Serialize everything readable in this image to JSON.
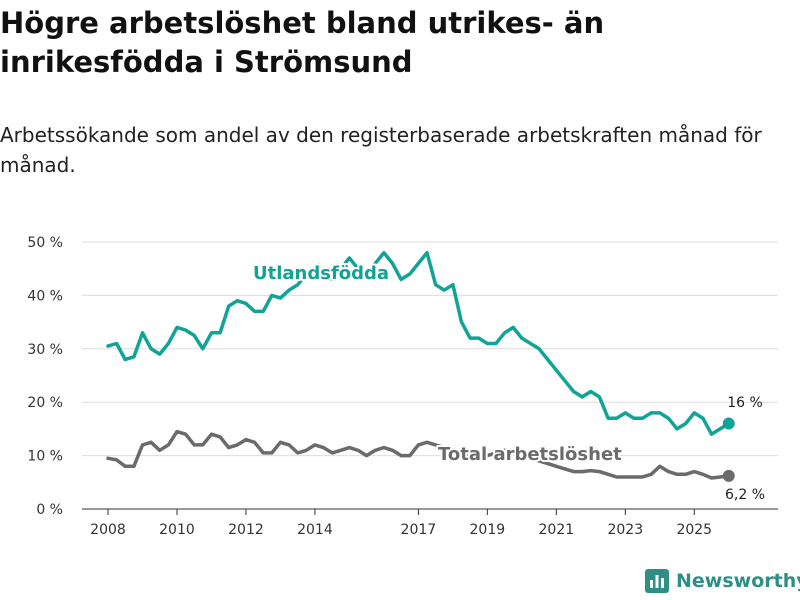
{
  "title": "Högre arbetslöshet bland utrikes- än inrikesfödda i Strömsund",
  "subtitle": "Arbetssökande som andel av den registerbaserade arbetskraften månad för månad.",
  "brand": "Newsworthy",
  "colors": {
    "utrikes": "#10a396",
    "total": "#6b6b6e",
    "grid": "#dddddd",
    "brand": "#2f8f85"
  },
  "chart_data": {
    "type": "line",
    "title": "Högre arbetslöshet bland utrikes- än inrikesfödda i Strömsund",
    "xlabel": "",
    "ylabel": "",
    "xlim": [
      2008.0,
      2026.5
    ],
    "ylim": [
      0,
      50
    ],
    "grid": true,
    "y_ticks": [
      0,
      10,
      20,
      30,
      40,
      50
    ],
    "y_tick_labels": [
      "0 %",
      "10 %",
      "20 %",
      "30 %",
      "40 %",
      "50 %"
    ],
    "x_ticks": [
      2008,
      2010,
      2012,
      2014,
      2017,
      2019,
      2021,
      2023,
      2025
    ],
    "x_tick_labels": [
      "2008",
      "2010",
      "2012",
      "2014",
      "2017",
      "2019",
      "2021",
      "2023",
      "2025"
    ],
    "series": [
      {
        "name": "Utlandsfödda",
        "end_label": "16 %",
        "x": [
          2008.0,
          2008.25,
          2008.5,
          2008.75,
          2009.0,
          2009.25,
          2009.5,
          2009.75,
          2010.0,
          2010.25,
          2010.5,
          2010.75,
          2011.0,
          2011.25,
          2011.5,
          2011.75,
          2012.0,
          2012.25,
          2012.5,
          2012.75,
          2013.0,
          2013.25,
          2013.5,
          2013.75,
          2014.0,
          2014.25,
          2014.5,
          2014.75,
          2015.0,
          2015.25,
          2015.5,
          2015.75,
          2016.0,
          2016.25,
          2016.5,
          2016.75,
          2017.0,
          2017.25,
          2017.5,
          2017.75,
          2018.0,
          2018.25,
          2018.5,
          2018.75,
          2019.0,
          2019.25,
          2019.5,
          2019.75,
          2020.0,
          2020.25,
          2020.5,
          2020.75,
          2021.0,
          2021.25,
          2021.5,
          2021.75,
          2022.0,
          2022.25,
          2022.5,
          2022.75,
          2023.0,
          2023.25,
          2023.5,
          2023.75,
          2024.0,
          2024.25,
          2024.5,
          2024.75,
          2025.0,
          2025.25,
          2025.5,
          2025.75,
          2026.0
        ],
        "values": [
          30.5,
          31,
          28,
          28.5,
          33,
          30,
          29,
          31,
          34,
          33.5,
          32.5,
          30,
          33,
          33,
          38,
          39,
          38.5,
          37,
          37,
          40,
          39.5,
          41,
          42,
          44,
          45,
          44,
          43,
          45,
          47,
          45,
          44,
          46,
          48,
          46,
          43,
          44,
          46,
          48,
          42,
          41,
          42,
          35,
          32,
          32,
          31,
          31,
          33,
          34,
          32,
          31,
          30,
          28,
          26,
          24,
          22,
          21,
          22,
          21,
          17,
          17,
          18,
          17,
          17,
          18,
          18,
          17,
          15,
          16,
          18,
          17,
          14,
          15,
          16
        ]
      },
      {
        "name": "Total arbetslöshet",
        "end_label": "6,2 %",
        "x": [
          2008.0,
          2008.25,
          2008.5,
          2008.75,
          2009.0,
          2009.25,
          2009.5,
          2009.75,
          2010.0,
          2010.25,
          2010.5,
          2010.75,
          2011.0,
          2011.25,
          2011.5,
          2011.75,
          2012.0,
          2012.25,
          2012.5,
          2012.75,
          2013.0,
          2013.25,
          2013.5,
          2013.75,
          2014.0,
          2014.25,
          2014.5,
          2014.75,
          2015.0,
          2015.25,
          2015.5,
          2015.75,
          2016.0,
          2016.25,
          2016.5,
          2016.75,
          2017.0,
          2017.25,
          2017.5,
          2017.75,
          2018.0,
          2018.25,
          2018.5,
          2018.75,
          2019.0,
          2019.25,
          2019.5,
          2019.75,
          2020.0,
          2020.25,
          2020.5,
          2020.75,
          2021.0,
          2021.25,
          2021.5,
          2021.75,
          2022.0,
          2022.25,
          2022.5,
          2022.75,
          2023.0,
          2023.25,
          2023.5,
          2023.75,
          2024.0,
          2024.25,
          2024.5,
          2024.75,
          2025.0,
          2025.25,
          2025.5,
          2025.75,
          2026.0
        ],
        "values": [
          9.5,
          9.2,
          8,
          8,
          12,
          12.5,
          11,
          12,
          14.5,
          14,
          12,
          12,
          14,
          13.5,
          11.5,
          12,
          13,
          12.5,
          10.5,
          10.5,
          12.5,
          12,
          10.5,
          11,
          12,
          11.5,
          10.5,
          11,
          11.5,
          11,
          10,
          11,
          11.5,
          11,
          10,
          10,
          12,
          12.5,
          12,
          11.5,
          11,
          10.5,
          10,
          10,
          10,
          10.5,
          11,
          11,
          10,
          9.5,
          9,
          8.5,
          8,
          7.5,
          7,
          7,
          7.2,
          7,
          6.5,
          6,
          6,
          6,
          6,
          6.5,
          8,
          7,
          6.5,
          6.5,
          7,
          6.5,
          5.8,
          6,
          6.2
        ]
      }
    ]
  }
}
